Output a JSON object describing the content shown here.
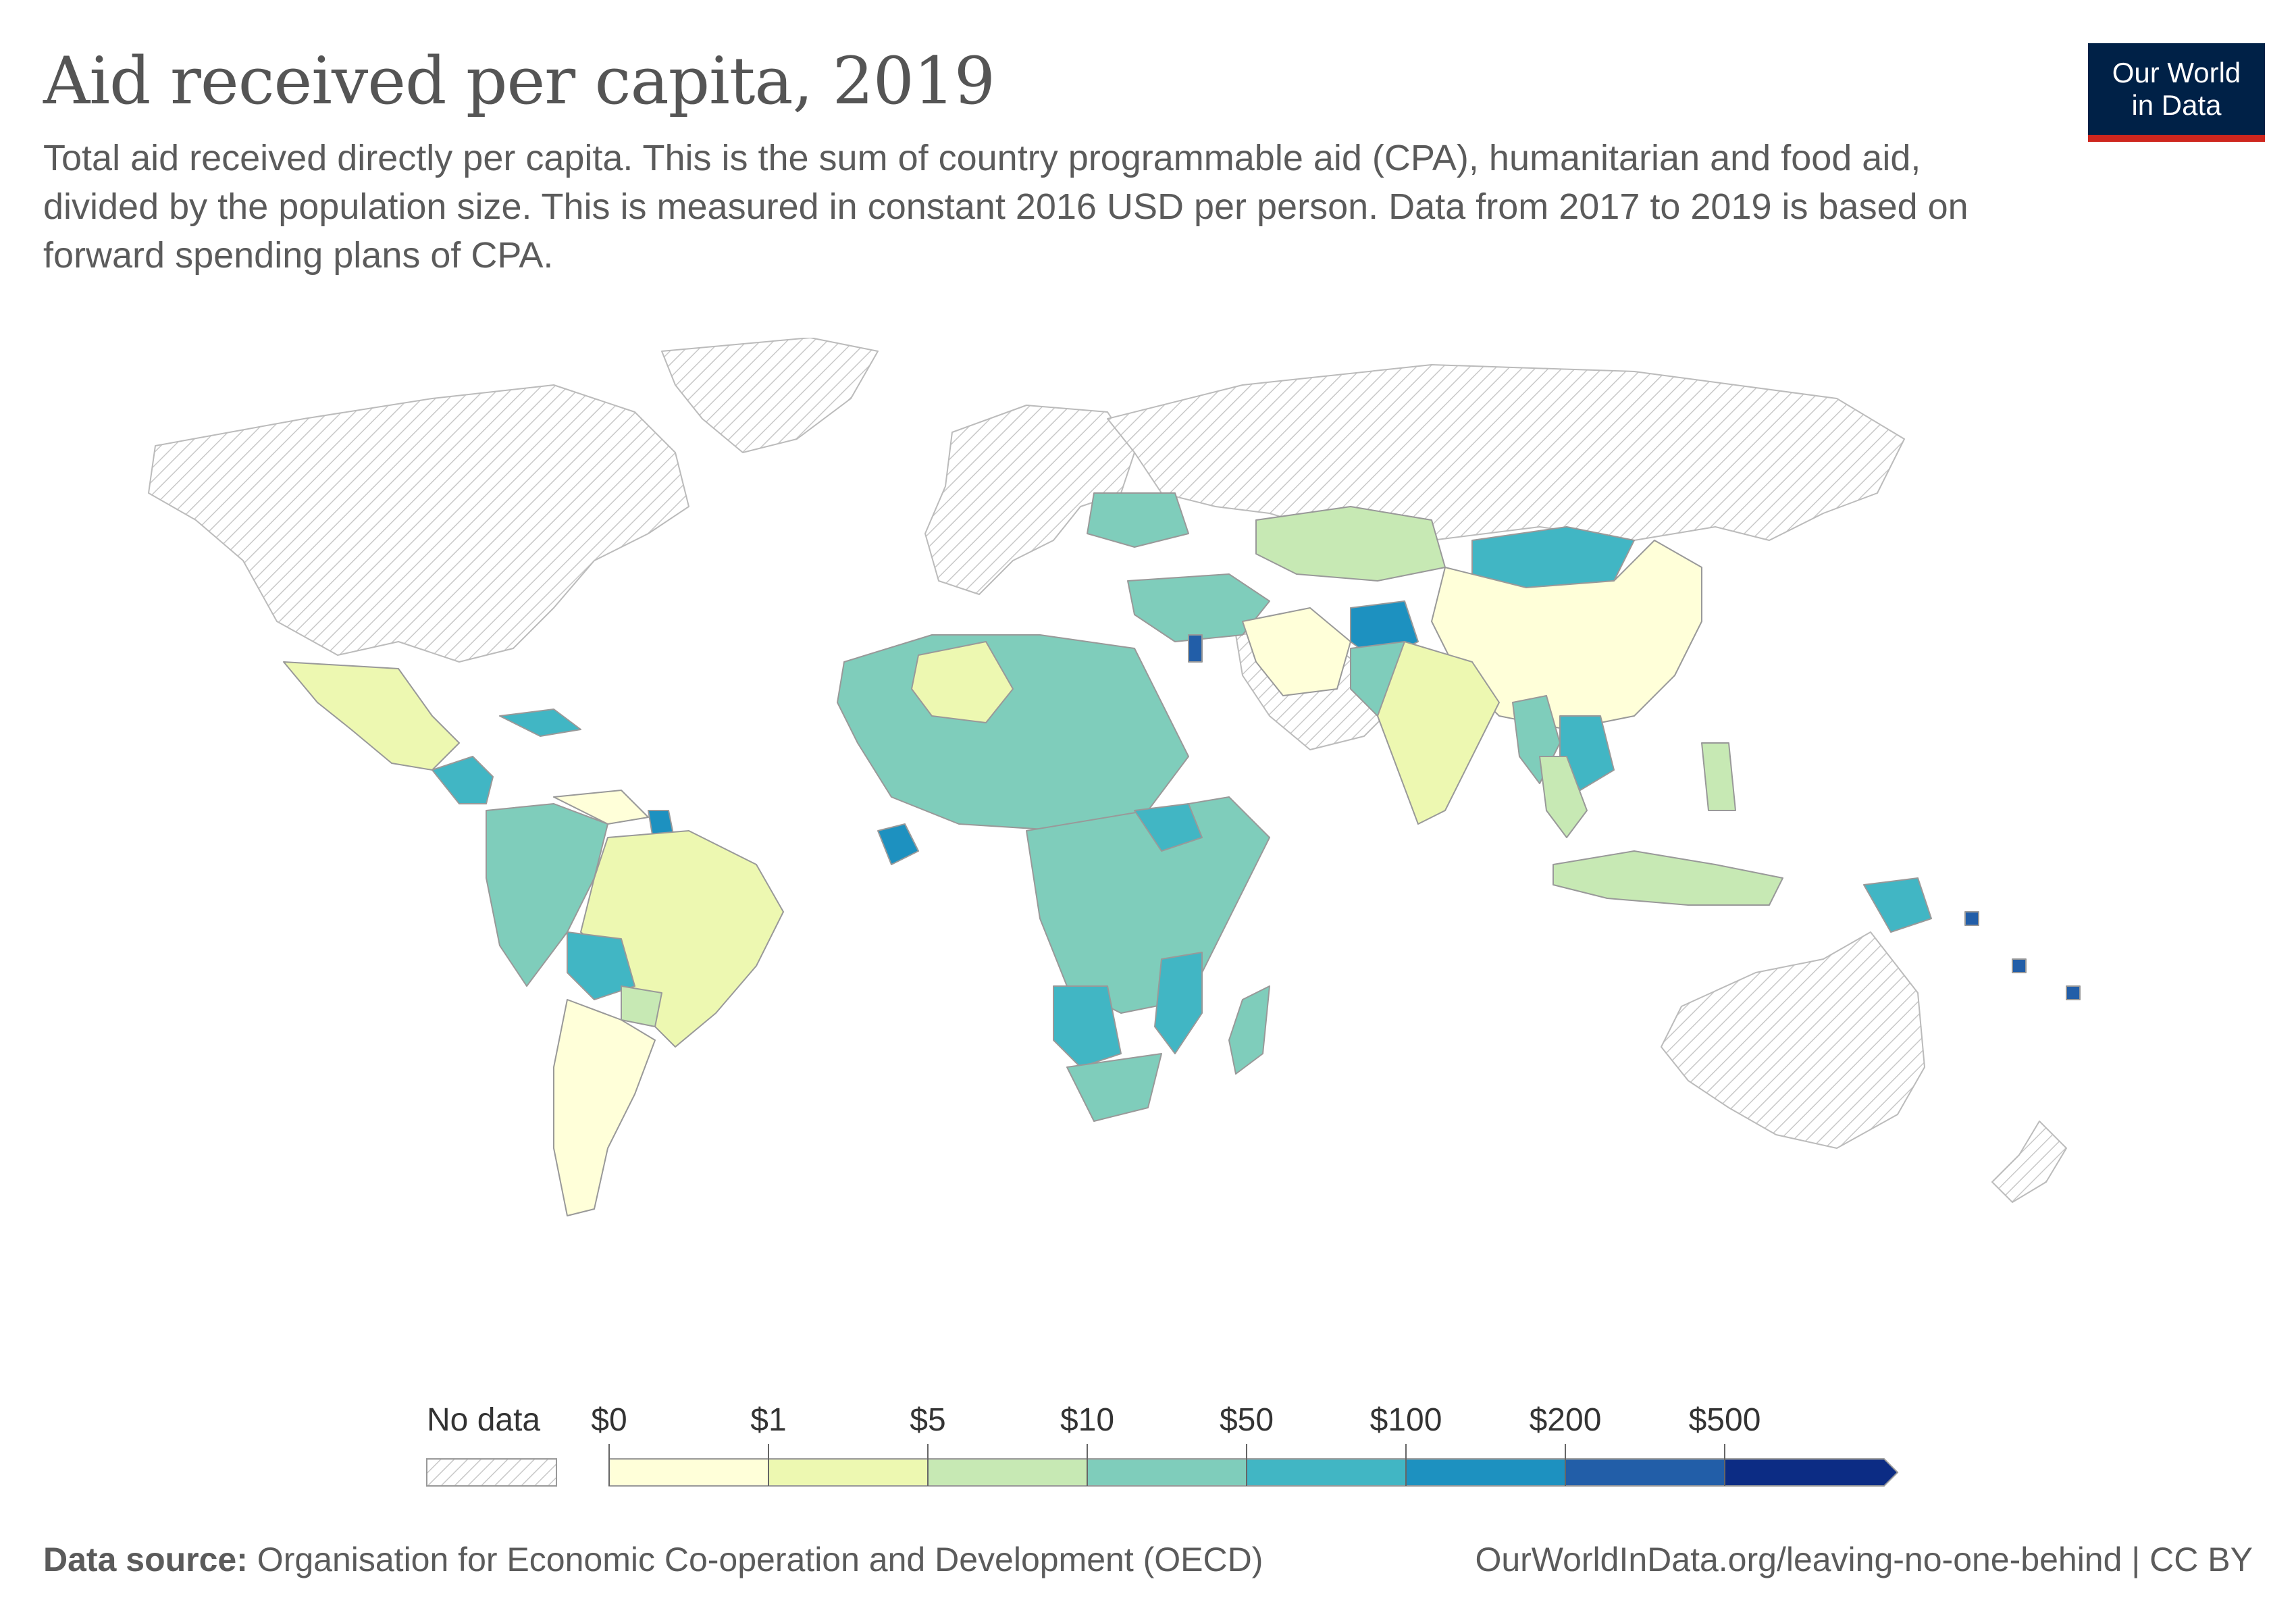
{
  "header": {
    "title": "Aid received per capita, 2019",
    "subtitle": "Total aid received directly per capita. This is the sum of country programmable aid (CPA), humanitarian and food aid, divided by the population size. This is measured in constant 2016 USD per person. Data from 2017 to 2019 is based on forward spending plans of CPA."
  },
  "logo": {
    "line1": "Our World",
    "line2": "in Data"
  },
  "legend": {
    "no_data_label": "No data",
    "bins": [
      "$0",
      "$1",
      "$5",
      "$10",
      "$50",
      "$100",
      "$200",
      "$500"
    ],
    "colors": [
      "#ffffd9",
      "#edf8b1",
      "#c7e9b4",
      "#7fcdbb",
      "#41b6c4",
      "#1d91c0",
      "#225ea8",
      "#0c2c84"
    ],
    "no_data_color": "#e0e0e0"
  },
  "footer": {
    "source_label": "Data source:",
    "source_text": "Organisation for Economic Co-operation and Development (OECD)",
    "url": "OurWorldInData.org/leaving-no-one-behind | CC BY"
  },
  "map_data": {
    "metric": "Aid received per capita",
    "year": 2019,
    "regions": [
      {
        "name": "North America",
        "bin": "No data"
      },
      {
        "name": "Greenland",
        "bin": "No data"
      },
      {
        "name": "Europe",
        "bin": "No data"
      },
      {
        "name": "Russia",
        "bin": "No data"
      },
      {
        "name": "Saudi Arabia",
        "bin": "No data"
      },
      {
        "name": "Australia",
        "bin": "No data"
      },
      {
        "name": "New Zealand",
        "bin": "No data"
      },
      {
        "name": "Mexico",
        "bin": "$1"
      },
      {
        "name": "Central America",
        "bin": "$50"
      },
      {
        "name": "Colombia/Venezuela/Ecuador/Peru",
        "bin": "$10"
      },
      {
        "name": "Brazil",
        "bin": "$1"
      },
      {
        "name": "Argentina/Chile",
        "bin": "$0"
      },
      {
        "name": "Bolivia",
        "bin": "$50"
      },
      {
        "name": "Guyana",
        "bin": "$100"
      },
      {
        "name": "Paraguay",
        "bin": "$5"
      },
      {
        "name": "North & West Africa",
        "bin": "$10"
      },
      {
        "name": "Algeria",
        "bin": "$1"
      },
      {
        "name": "Central & East Africa",
        "bin": "$10"
      },
      {
        "name": "South Sudan",
        "bin": "$50"
      },
      {
        "name": "Liberia/Sierra Leone",
        "bin": "$50"
      },
      {
        "name": "Namibia/Botswana",
        "bin": "$50"
      },
      {
        "name": "Mozambique/Malawi",
        "bin": "$50"
      },
      {
        "name": "Madagascar",
        "bin": "$10"
      },
      {
        "name": "Southern Africa",
        "bin": "$10"
      },
      {
        "name": "Ukraine/Belarus",
        "bin": "$10"
      },
      {
        "name": "Turkey/Middle East",
        "bin": "$10"
      },
      {
        "name": "Jordan",
        "bin": "$200"
      },
      {
        "name": "Kazakhstan",
        "bin": "$5"
      },
      {
        "name": "Mongolia",
        "bin": "$50"
      },
      {
        "name": "China",
        "bin": "$0"
      },
      {
        "name": "Iran",
        "bin": "$0"
      },
      {
        "name": "Afghanistan",
        "bin": "$100"
      },
      {
        "name": "Pakistan",
        "bin": "$10"
      },
      {
        "name": "India",
        "bin": "$1"
      },
      {
        "name": "Myanmar",
        "bin": "$10"
      },
      {
        "name": "Laos/Cambodia",
        "bin": "$50"
      },
      {
        "name": "Vietnam/Thailand",
        "bin": "$5"
      },
      {
        "name": "Philippines",
        "bin": "$5"
      },
      {
        "name": "Indonesia",
        "bin": "$5"
      },
      {
        "name": "Papua New Guinea",
        "bin": "$50"
      },
      {
        "name": "Pacific Islands",
        "bin": "$200"
      }
    ]
  }
}
